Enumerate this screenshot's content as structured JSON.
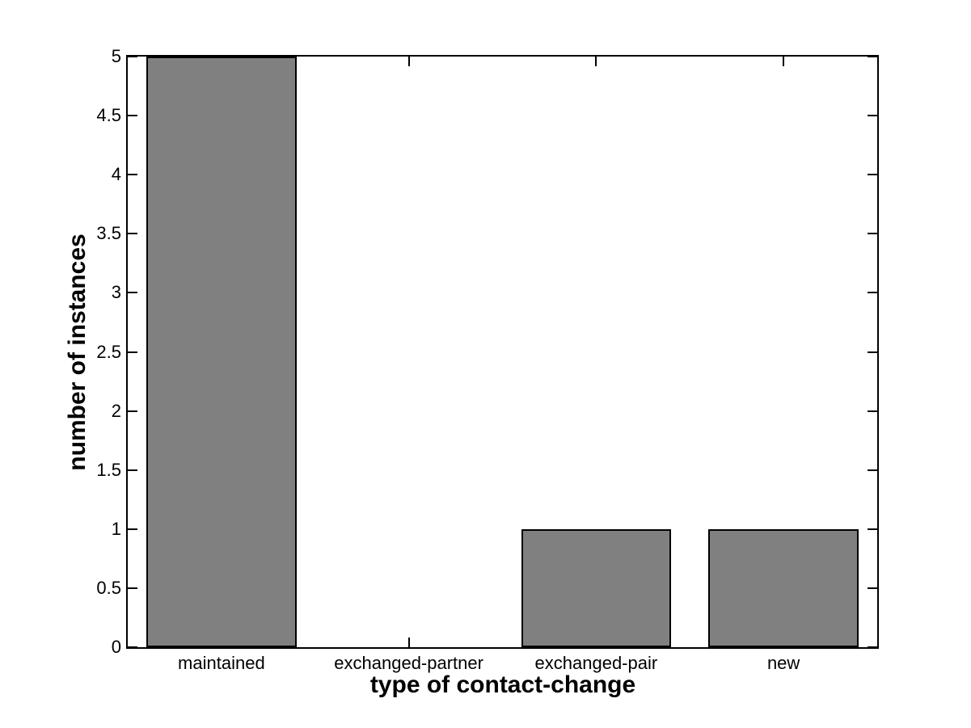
{
  "chart_data": {
    "type": "bar",
    "title": "",
    "xlabel": "type of contact-change",
    "ylabel": "number of instances",
    "categories": [
      "maintained",
      "exchanged-partner",
      "exchanged-pair",
      "new"
    ],
    "values": [
      5,
      0,
      1,
      1
    ],
    "ylim": [
      0,
      5
    ],
    "yticks": [
      0,
      0.5,
      1,
      1.5,
      2,
      2.5,
      3,
      3.5,
      4,
      4.5,
      5
    ],
    "ytick_labels": [
      "0",
      "0.5",
      "1",
      "1.5",
      "2",
      "2.5",
      "3",
      "3.5",
      "4",
      "4.5",
      "5"
    ],
    "grid": false,
    "legend": "none",
    "colors": {
      "bar_fill": "#808080",
      "bar_edge": "#000000",
      "axis": "#000000",
      "text": "#000000",
      "background": "#ffffff"
    }
  }
}
